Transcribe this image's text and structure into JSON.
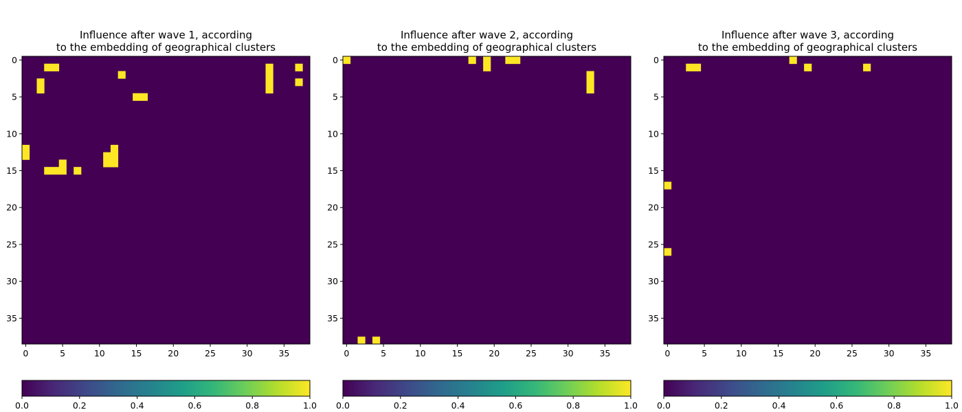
{
  "chart_data": [
    {
      "type": "heatmap",
      "title_line1": "Influence after wave 1, according",
      "title_line2": "to the embedding of geographical clusters",
      "grid_size": 39,
      "xticks": [
        0,
        5,
        10,
        15,
        20,
        25,
        30,
        35
      ],
      "yticks": [
        0,
        5,
        10,
        15,
        20,
        25,
        30,
        35
      ],
      "zlim": [
        0,
        1
      ],
      "colorbar_ticks": [
        "0.0",
        "0.2",
        "0.4",
        "0.6",
        "0.8",
        "1.0"
      ],
      "rows": [
        "000000000000000000000000000000000000000",
        "000110000000000000000000000000000100010",
        "000000000000010000000000000000000100000",
        "001000000000000000000000000000000100010",
        "001000000000000000000000000000000100000",
        "000000000000000110000000000000000000000",
        "000000000000000000000000000000000000000",
        "000000000000000000000000000000000000000",
        "000000000000000000000000000000000000000",
        "000000000000000000000000000000000000000",
        "000000000000000000000000000000000000000",
        "000000000000000000000000000000000000000",
        "100000000000100000000000000000000000000",
        "100000000001100000000000000000000000000",
        "000001000001100000000000000000000000000",
        "000111010000000000000000000000000000000",
        "000000000000000000000000000000000000000",
        "000000000000000000000000000000000000000",
        "000000000000000000000000000000000000000",
        "000000000000000000000000000000000000000",
        "000000000000000000000000000000000000000",
        "000000000000000000000000000000000000000",
        "000000000000000000000000000000000000000",
        "000000000000000000000000000000000000000",
        "000000000000000000000000000000000000000",
        "000000000000000000000000000000000000000",
        "000000000000000000000000000000000000000",
        "000000000000000000000000000000000000000",
        "000000000000000000000000000000000000000",
        "000000000000000000000000000000000000000",
        "000000000000000000000000000000000000000",
        "000000000000000000000000000000000000000",
        "000000000000000000000000000000000000000",
        "000000000000000000000000000000000000000",
        "000000000000000000000000000000000000000",
        "000000000000000000000000000000000000000",
        "000000000000000000000000000000000000000",
        "000000000000000000000000000000000000000",
        "000000000000000000000000000000000000000"
      ]
    },
    {
      "type": "heatmap",
      "title_line1": "Influence after wave 2, according",
      "title_line2": "to the embedding of geographical clusters",
      "grid_size": 39,
      "xticks": [
        0,
        5,
        10,
        15,
        20,
        25,
        30,
        35
      ],
      "yticks": [
        0,
        5,
        10,
        15,
        20,
        25,
        30,
        35
      ],
      "zlim": [
        0,
        1
      ],
      "colorbar_ticks": [
        "0.0",
        "0.2",
        "0.4",
        "0.6",
        "0.8",
        "1.0"
      ],
      "rows": [
        "100000000000000001010011000000000000000",
        "000000000000000000010000000000000000000",
        "000000000000000000000000000000000100000",
        "000000000000000000000000000000000100000",
        "000000000000000000000000000000000100000",
        "000000000000000000000000000000000000000",
        "000000000000000000000000000000000000000",
        "000000000000000000000000000000000000000",
        "000000000000000000000000000000000000000",
        "000000000000000000000000000000000000000",
        "000000000000000000000000000000000000000",
        "000000000000000000000000000000000000000",
        "000000000000000000000000000000000000000",
        "000000000000000000000000000000000000000",
        "000000000000000000000000000000000000000",
        "000000000000000000000000000000000000000",
        "000000000000000000000000000000000000000",
        "000000000000000000000000000000000000000",
        "000000000000000000000000000000000000000",
        "000000000000000000000000000000000000000",
        "000000000000000000000000000000000000000",
        "000000000000000000000000000000000000000",
        "000000000000000000000000000000000000000",
        "000000000000000000000000000000000000000",
        "000000000000000000000000000000000000000",
        "000000000000000000000000000000000000000",
        "000000000000000000000000000000000000000",
        "000000000000000000000000000000000000000",
        "000000000000000000000000000000000000000",
        "000000000000000000000000000000000000000",
        "000000000000000000000000000000000000000",
        "000000000000000000000000000000000000000",
        "000000000000000000000000000000000000000",
        "000000000000000000000000000000000000000",
        "000000000000000000000000000000000000000",
        "000000000000000000000000000000000000000",
        "000000000000000000000000000000000000000",
        "000000000000000000000000000000000000000",
        "001010000000000000000000000000000000000"
      ]
    },
    {
      "type": "heatmap",
      "title_line1": "Influence after wave 3, according",
      "title_line2": "to the embedding of geographical clusters",
      "grid_size": 39,
      "xticks": [
        0,
        5,
        10,
        15,
        20,
        25,
        30,
        35
      ],
      "yticks": [
        0,
        5,
        10,
        15,
        20,
        25,
        30,
        35
      ],
      "zlim": [
        0,
        1
      ],
      "colorbar_ticks": [
        "0.0",
        "0.2",
        "0.4",
        "0.6",
        "0.8",
        "1.0"
      ],
      "rows": [
        "000000000000000001000000000000000000000",
        "000110000000000000010000000100000000000",
        "000000000000000000000000000000000000000",
        "000000000000000000000000000000000000000",
        "000000000000000000000000000000000000000",
        "000000000000000000000000000000000000000",
        "000000000000000000000000000000000000000",
        "000000000000000000000000000000000000000",
        "000000000000000000000000000000000000000",
        "000000000000000000000000000000000000000",
        "000000000000000000000000000000000000000",
        "000000000000000000000000000000000000000",
        "000000000000000000000000000000000000000",
        "000000000000000000000000000000000000000",
        "000000000000000000000000000000000000000",
        "000000000000000000000000000000000000000",
        "000000000000000000000000000000000000000",
        "100000000000000000000000000000000000000",
        "000000000000000000000000000000000000000",
        "000000000000000000000000000000000000000",
        "000000000000000000000000000000000000000",
        "000000000000000000000000000000000000000",
        "000000000000000000000000000000000000000",
        "000000000000000000000000000000000000000",
        "000000000000000000000000000000000000000",
        "000000000000000000000000000000000000000",
        "100000000000000000000000000000000000000",
        "000000000000000000000000000000000000000",
        "000000000000000000000000000000000000000",
        "000000000000000000000000000000000000000",
        "000000000000000000000000000000000000000",
        "000000000000000000000000000000000000000",
        "000000000000000000000000000000000000000",
        "000000000000000000000000000000000000000",
        "000000000000000000000000000000000000000",
        "000000000000000000000000000000000000000",
        "000000000000000000000000000000000000000",
        "000000000000000000000000000000000000000",
        "000000000000000000000000000000000000000"
      ]
    }
  ],
  "colors": {
    "low": "#440154",
    "high": "#fde725",
    "viridis_stops": [
      "#440154",
      "#482878",
      "#3e4989",
      "#31688e",
      "#26828e",
      "#1f9e89",
      "#35b779",
      "#6ece58",
      "#b5de2b",
      "#fde725"
    ]
  }
}
